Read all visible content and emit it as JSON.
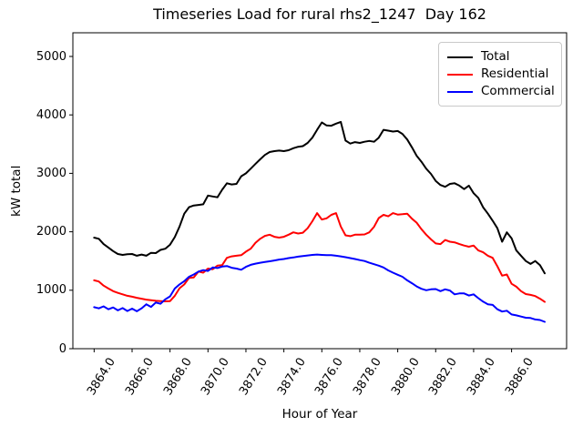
{
  "figure": {
    "title": "Timeseries Load for rural rhs2_1247  Day 162",
    "xlabel": "Hour of Year",
    "ylabel": "kW total"
  },
  "legend": {
    "position": "upper right",
    "entries": [
      {
        "label": "Total",
        "color": "#000000"
      },
      {
        "label": "Residential",
        "color": "#ff0000"
      },
      {
        "label": "Commercial",
        "color": "#0000ff"
      }
    ]
  },
  "chart_data": {
    "type": "line",
    "title": "Timeseries Load for rural rhs2_1247  Day 162",
    "xlabel": "Hour of Year",
    "ylabel": "kW total",
    "grid": false,
    "legend_position": "upper right",
    "xlim": [
      3862.88,
      3888.9
    ],
    "ylim": [
      0,
      5405
    ],
    "x_ticks": [
      3864,
      3866,
      3868,
      3870,
      3872,
      3874,
      3876,
      3878,
      3880,
      3882,
      3884,
      3886
    ],
    "x_tick_labels": [
      "3864.0",
      "3866.0",
      "3868.0",
      "3870.0",
      "3872.0",
      "3874.0",
      "3876.0",
      "3878.0",
      "3880.0",
      "3882.0",
      "3884.0",
      "3886.0"
    ],
    "y_ticks": [
      0,
      1000,
      2000,
      3000,
      4000,
      5000
    ],
    "y_tick_labels": [
      "0",
      "1000",
      "2000",
      "3000",
      "4000",
      "5000"
    ],
    "x_start": 3864.0,
    "x_step": 0.25,
    "series": [
      {
        "name": "Total",
        "color": "#000000",
        "values": [
          1900,
          1880,
          1790,
          1730,
          1670,
          1620,
          1605,
          1615,
          1620,
          1590,
          1610,
          1590,
          1640,
          1635,
          1690,
          1710,
          1780,
          1910,
          2090,
          2310,
          2420,
          2450,
          2460,
          2470,
          2620,
          2605,
          2590,
          2720,
          2830,
          2810,
          2820,
          2950,
          3000,
          3080,
          3160,
          3240,
          3315,
          3365,
          3380,
          3390,
          3380,
          3395,
          3430,
          3455,
          3465,
          3520,
          3610,
          3745,
          3870,
          3820,
          3815,
          3850,
          3880,
          3560,
          3510,
          3535,
          3520,
          3540,
          3555,
          3540,
          3610,
          3745,
          3730,
          3715,
          3725,
          3675,
          3580,
          3445,
          3300,
          3200,
          3080,
          2990,
          2870,
          2800,
          2770,
          2820,
          2830,
          2790,
          2730,
          2790,
          2660,
          2580,
          2420,
          2310,
          2190,
          2060,
          1830,
          1990,
          1890,
          1680,
          1590,
          1500,
          1450,
          1500,
          1430,
          1290
        ]
      },
      {
        "name": "Residential",
        "color": "#ff0000",
        "values": [
          1170,
          1150,
          1080,
          1030,
          985,
          955,
          930,
          905,
          890,
          870,
          855,
          840,
          830,
          820,
          815,
          810,
          815,
          905,
          1035,
          1100,
          1210,
          1220,
          1320,
          1300,
          1370,
          1360,
          1420,
          1430,
          1555,
          1580,
          1590,
          1600,
          1660,
          1710,
          1810,
          1880,
          1930,
          1950,
          1915,
          1900,
          1915,
          1950,
          1990,
          1970,
          1985,
          2060,
          2180,
          2320,
          2210,
          2230,
          2290,
          2320,
          2090,
          1940,
          1925,
          1950,
          1950,
          1955,
          1990,
          2085,
          2235,
          2290,
          2265,
          2320,
          2295,
          2300,
          2310,
          2225,
          2155,
          2045,
          1950,
          1870,
          1800,
          1790,
          1860,
          1830,
          1820,
          1790,
          1765,
          1745,
          1765,
          1680,
          1650,
          1590,
          1555,
          1410,
          1250,
          1270,
          1110,
          1060,
          985,
          935,
          920,
          900,
          855,
          800
        ]
      },
      {
        "name": "Commercial",
        "color": "#0000ff",
        "values": [
          710,
          690,
          725,
          675,
          705,
          655,
          695,
          645,
          685,
          640,
          690,
          760,
          715,
          790,
          770,
          845,
          895,
          1030,
          1100,
          1155,
          1230,
          1270,
          1320,
          1345,
          1330,
          1390,
          1380,
          1405,
          1415,
          1385,
          1370,
          1350,
          1400,
          1435,
          1455,
          1470,
          1483,
          1495,
          1510,
          1525,
          1535,
          1550,
          1560,
          1575,
          1585,
          1595,
          1605,
          1610,
          1605,
          1600,
          1600,
          1590,
          1580,
          1565,
          1550,
          1535,
          1515,
          1500,
          1470,
          1445,
          1420,
          1390,
          1340,
          1300,
          1265,
          1230,
          1170,
          1120,
          1065,
          1025,
          1000,
          1015,
          1020,
          985,
          1015,
          995,
          930,
          945,
          945,
          910,
          930,
          865,
          805,
          760,
          750,
          675,
          635,
          650,
          585,
          570,
          550,
          530,
          525,
          500,
          490,
          460
        ]
      }
    ]
  }
}
